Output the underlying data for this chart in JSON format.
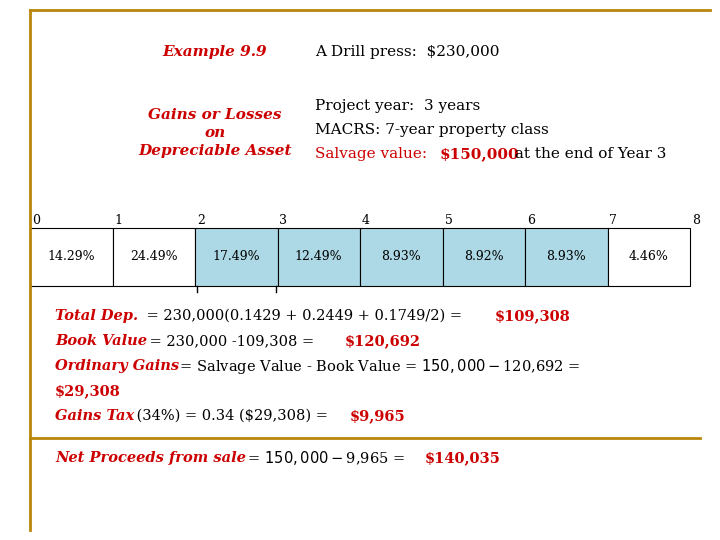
{
  "title_example": "Example 9.9",
  "drill_press_line": "A Drill press:  $230,000",
  "project_year_line": "Project year:  3 years",
  "macrs_line": "MACRS: 7-year property class",
  "salvage_prefix": "Salvage value:  ",
  "salvage_value": "$150,000",
  "salvage_suffix": " at the end of Year 3",
  "macrs_percents": [
    "14.29%",
    "24.49%",
    "17.49%",
    "12.49%",
    "8.93%",
    "8.92%",
    "8.93%",
    "4.46%"
  ],
  "highlighted_cells": [
    2,
    3,
    4,
    5,
    6
  ],
  "cell_color_highlight": "#ADD8E6",
  "cell_color_normal": "#FFFFFF",
  "timeline_labels": [
    "0",
    "1",
    "2",
    "3",
    "4",
    "5",
    "6",
    "7",
    "8"
  ],
  "red_color": "#CC0000",
  "bg_color": "#FFFFFF",
  "border_color": "#B8860B"
}
